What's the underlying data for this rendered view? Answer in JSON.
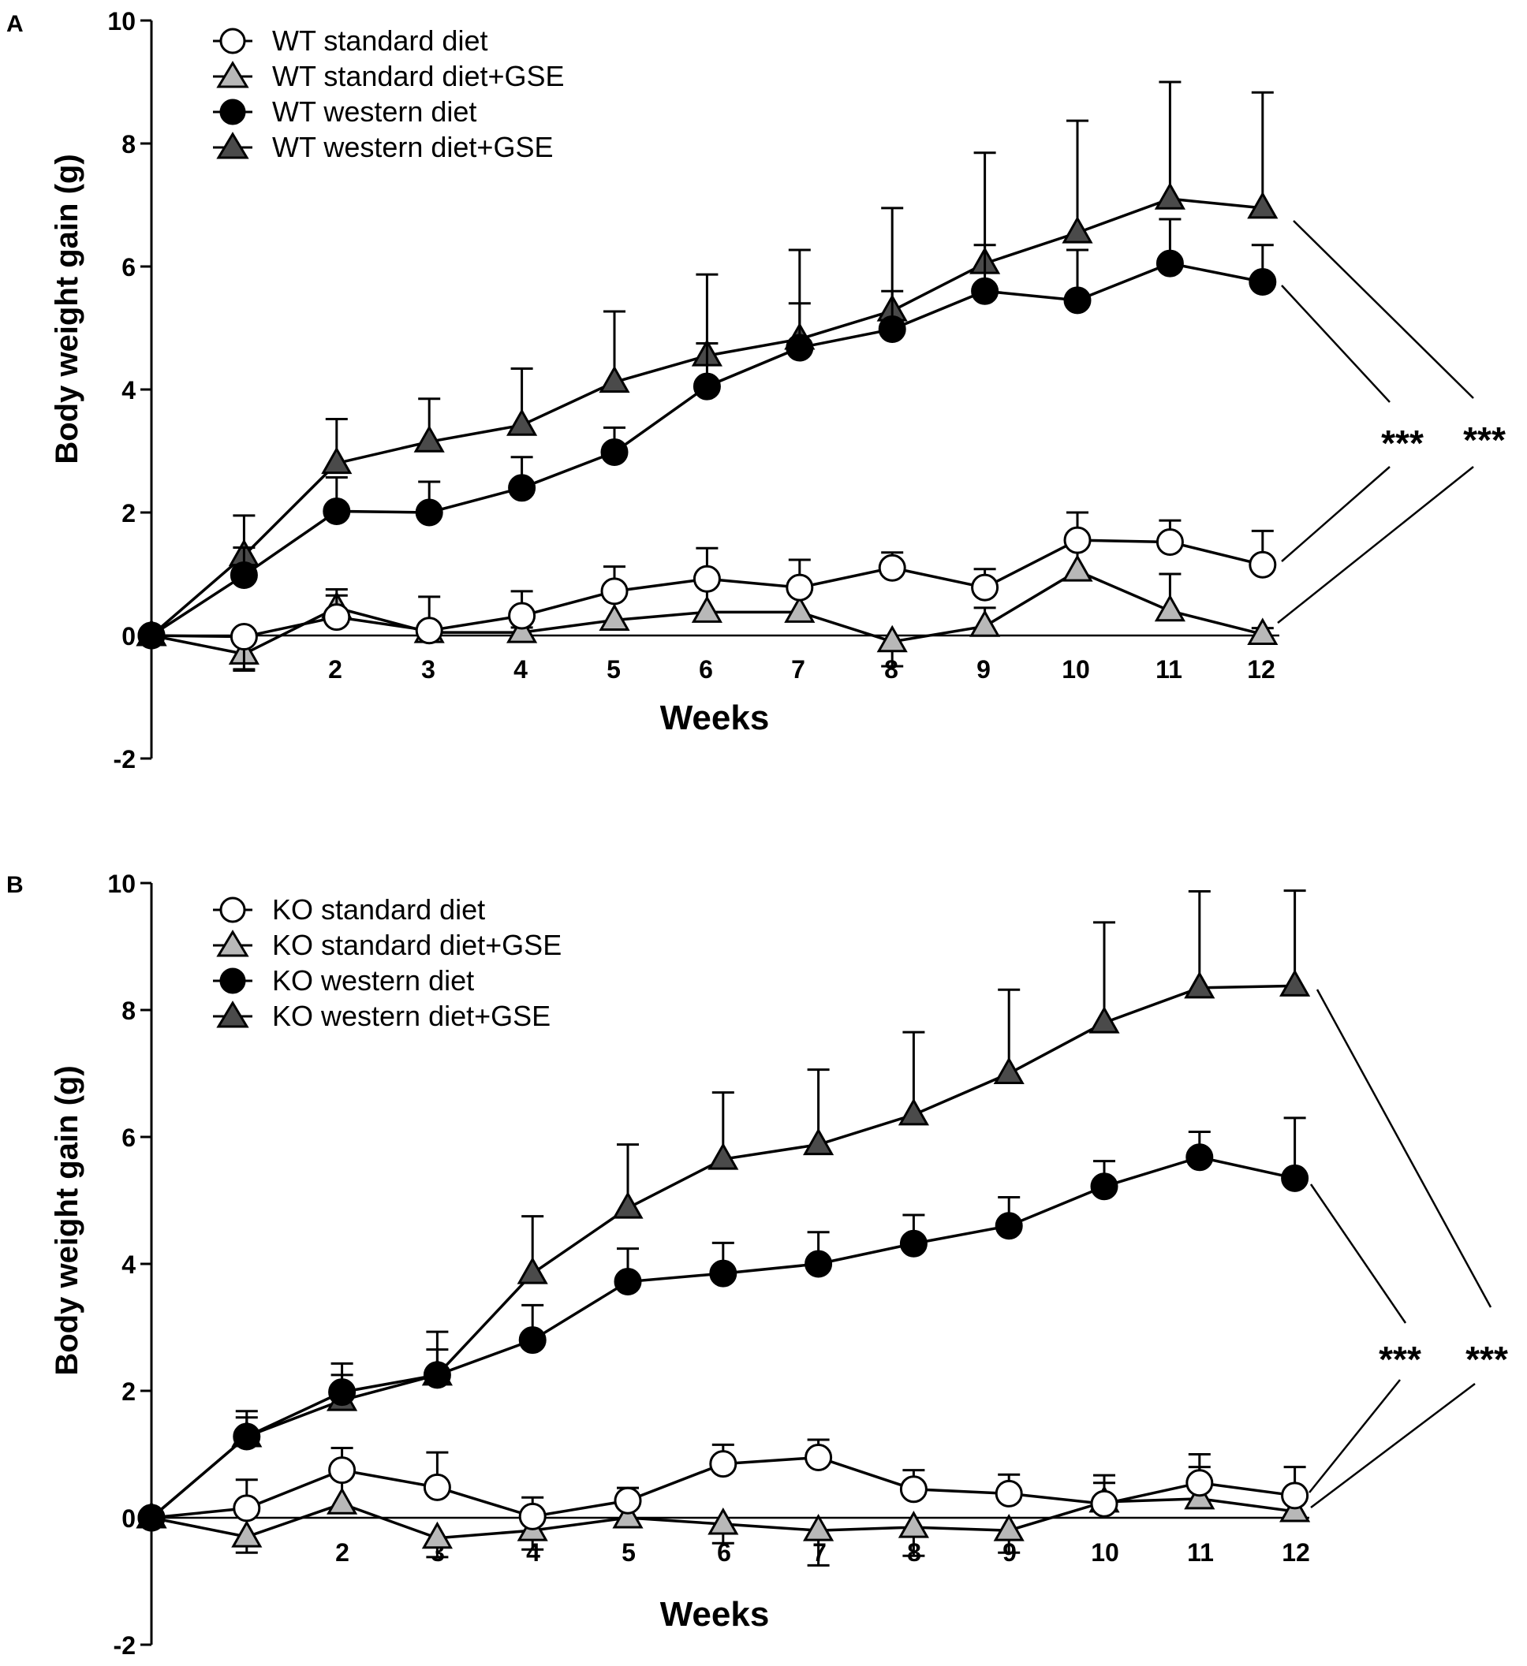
{
  "colors": {
    "axis": "#000000",
    "white_fill": "#ffffff",
    "light_gray_fill": "#b8b8b8",
    "black_fill": "#000000",
    "dark_gray_fill": "#4a4a4a"
  },
  "chart_data": [
    {
      "type": "line",
      "panel_label": "A",
      "xlabel": "Weeks",
      "ylabel": "Body weight gain (g)",
      "ylim": [
        -2,
        10
      ],
      "yticks": [
        "-2",
        "0",
        "2",
        "4",
        "6",
        "8",
        "10"
      ],
      "x": [
        0,
        1,
        2,
        3,
        4,
        5,
        6,
        7,
        8,
        9,
        10,
        11,
        12
      ],
      "xtick_labels": [
        "2",
        "3",
        "4",
        "5",
        "6",
        "7",
        "8",
        "9",
        "10",
        "11",
        "12"
      ],
      "significance": [
        "***",
        "***"
      ],
      "series": [
        {
          "name": "WT standard diet",
          "marker": "circle",
          "fill": "white",
          "values": [
            0,
            -0.02,
            0.3,
            0.08,
            0.32,
            0.72,
            0.92,
            0.78,
            1.1,
            0.78,
            1.55,
            1.52,
            1.15
          ],
          "errors": [
            0,
            0.55,
            0.45,
            0.55,
            0.4,
            0.4,
            0.5,
            0.45,
            0.25,
            0.3,
            0.45,
            0.35,
            0.55
          ]
        },
        {
          "name": "WT standard diet+GSE",
          "marker": "triangle",
          "fill": "light_gray",
          "values": [
            0,
            -0.3,
            0.45,
            0.05,
            0.05,
            0.25,
            0.38,
            0.38,
            -0.1,
            0.15,
            1.05,
            0.4,
            0.02
          ],
          "errors": [
            0,
            0.25,
            0.2,
            0.15,
            0.08,
            0.5,
            0.5,
            0.5,
            0.4,
            0.3,
            0.45,
            0.6,
            0.1
          ]
        },
        {
          "name": "WT western diet",
          "marker": "circle",
          "fill": "black",
          "values": [
            0,
            0.98,
            2.02,
            2.0,
            2.4,
            2.98,
            4.05,
            4.68,
            4.98,
            5.6,
            5.45,
            6.05,
            5.75
          ],
          "errors": [
            0,
            0.45,
            0.55,
            0.5,
            0.5,
            0.4,
            0.7,
            0.72,
            0.62,
            0.75,
            0.82,
            0.72,
            0.6
          ]
        },
        {
          "name": "WT western diet+GSE",
          "marker": "triangle",
          "fill": "dark_gray",
          "values": [
            0,
            1.3,
            2.8,
            3.15,
            3.42,
            4.12,
            4.55,
            4.82,
            5.28,
            6.05,
            6.55,
            7.1,
            6.95
          ],
          "errors": [
            0,
            0.65,
            0.72,
            0.7,
            0.92,
            1.15,
            1.32,
            1.45,
            1.67,
            1.8,
            1.82,
            1.9,
            1.88
          ]
        }
      ]
    },
    {
      "type": "line",
      "panel_label": "B",
      "xlabel": "Weeks",
      "ylabel": "Body weight gain (g)",
      "ylim": [
        -2,
        10
      ],
      "yticks": [
        "-2",
        "0",
        "2",
        "4",
        "6",
        "8",
        "10"
      ],
      "x": [
        0,
        1,
        2,
        3,
        4,
        5,
        6,
        7,
        8,
        9,
        10,
        11,
        12
      ],
      "xtick_labels": [
        "2",
        "3",
        "4",
        "5",
        "6",
        "7",
        "8",
        "9",
        "10",
        "11",
        "12"
      ],
      "significance": [
        "***",
        "***"
      ],
      "series": [
        {
          "name": "KO standard diet",
          "marker": "circle",
          "fill": "white",
          "values": [
            0,
            0.15,
            0.75,
            0.48,
            0.02,
            0.27,
            0.85,
            0.95,
            0.45,
            0.38,
            0.22,
            0.55,
            0.35
          ],
          "errors": [
            0,
            0.45,
            0.35,
            0.55,
            0.3,
            0.2,
            0.3,
            0.28,
            0.3,
            0.3,
            0.45,
            0.45,
            0.45
          ]
        },
        {
          "name": "KO standard diet+GSE",
          "marker": "triangle",
          "fill": "light_gray",
          "values": [
            0,
            -0.3,
            0.22,
            -0.32,
            -0.2,
            0.0,
            -0.1,
            -0.2,
            -0.15,
            -0.2,
            0.25,
            0.3,
            0.1
          ],
          "errors": [
            0,
            0.25,
            0.6,
            0.3,
            0.3,
            0.25,
            0.3,
            0.55,
            0.45,
            0.35,
            0.3,
            0.5,
            0.3
          ]
        },
        {
          "name": "KO western diet",
          "marker": "circle",
          "fill": "black",
          "values": [
            0,
            1.28,
            1.98,
            2.25,
            2.8,
            3.72,
            3.85,
            4.0,
            4.32,
            4.6,
            5.22,
            5.68,
            5.35
          ],
          "errors": [
            0,
            0.4,
            0.45,
            0.4,
            0.55,
            0.52,
            0.48,
            0.5,
            0.45,
            0.45,
            0.4,
            0.4,
            0.95
          ]
        },
        {
          "name": "KO western diet+GSE",
          "marker": "triangle",
          "fill": "dark_gray",
          "values": [
            0,
            1.28,
            1.85,
            2.25,
            3.85,
            4.88,
            5.65,
            5.88,
            6.35,
            7.0,
            7.8,
            8.35,
            8.38
          ],
          "errors": [
            0,
            0.3,
            0.4,
            0.68,
            0.9,
            1.0,
            1.05,
            1.18,
            1.3,
            1.32,
            1.58,
            1.52,
            1.5
          ]
        }
      ]
    }
  ]
}
